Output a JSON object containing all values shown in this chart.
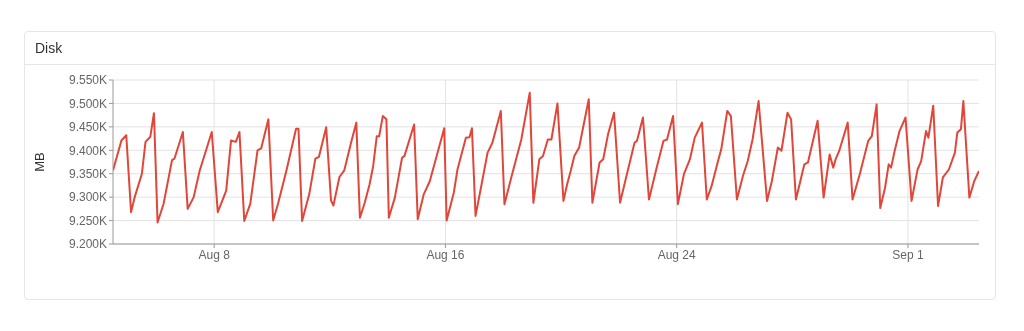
{
  "chart_data": {
    "type": "line",
    "title": "Disk",
    "ylabel": "MB",
    "color": "#e0473a",
    "grid": true,
    "legend": false,
    "marker": "none",
    "line_style": "solid",
    "xlim": [
      "--08-04T12:00",
      "--09-03T11:00"
    ],
    "xticks": [
      {
        "value": "--08-08",
        "label": "Aug 8"
      },
      {
        "value": "--08-16",
        "label": "Aug 16"
      },
      {
        "value": "--08-24",
        "label": "Aug 24"
      },
      {
        "value": "--09-01",
        "label": "Sep 1"
      }
    ],
    "ylim": [
      9200,
      9550
    ],
    "yticks": [
      {
        "value": 9200,
        "label": "9.200K"
      },
      {
        "value": 9250,
        "label": "9.250K"
      },
      {
        "value": 9300,
        "label": "9.300K"
      },
      {
        "value": 9350,
        "label": "9.350K"
      },
      {
        "value": 9400,
        "label": "9.400K"
      },
      {
        "value": 9450,
        "label": "9.450K"
      },
      {
        "value": 9500,
        "label": "9.500K"
      },
      {
        "value": 9550,
        "label": "9.550K"
      }
    ],
    "x": [
      "--08-04T12:00",
      "--08-04T19:00",
      "--08-04T23:00",
      "--08-05T03:00",
      "--08-05T06:00",
      "--08-05T12:00",
      "--08-05T15:00",
      "--08-05T19:00",
      "--08-05T22:00",
      "--08-06T01:00",
      "--08-06T06:00",
      "--08-06T13:00",
      "--08-06T15:00",
      "--08-06T22:00",
      "--08-07T02:00",
      "--08-07T07:00",
      "--08-07T12:00",
      "--08-07T22:00",
      "--08-08T03:00",
      "--08-08T10:00",
      "--08-08T14:00",
      "--08-08T18:00",
      "--08-08T21:00",
      "--08-09T01:00",
      "--08-09T06:00",
      "--08-09T12:00",
      "--08-09T15:00",
      "--08-09T21:00",
      "--08-10T01:00",
      "--08-10T05:00",
      "--08-10T12:00",
      "--08-10T20:00",
      "--08-10T22:00",
      "--08-11T01:00",
      "--08-11T07:00",
      "--08-11T12:00",
      "--08-11T15:00",
      "--08-11T21:00",
      "--08-12T01:00",
      "--08-12T03:00",
      "--08-12T08:00",
      "--08-12T12:00",
      "--08-12T18:00",
      "--08-12T22:00",
      "--08-13T01:00",
      "--08-13T05:00",
      "--08-13T09:00",
      "--08-13T12:00",
      "--08-13T15:00",
      "--08-13T17:00",
      "--08-13T20:00",
      "--08-13T23:00",
      "--08-14T01:00",
      "--08-14T06:00",
      "--08-14T12:00",
      "--08-14T14:00",
      "--08-14T22:00",
      "--08-15T01:00",
      "--08-15T06:00",
      "--08-15T11:00",
      "--08-15T23:00",
      "--08-16T01:00",
      "--08-16T07:00",
      "--08-16T10:00",
      "--08-16T17:00",
      "--08-16T20:00",
      "--08-16T22:00",
      "--08-17T01:00",
      "--08-17T06:00",
      "--08-17T11:00",
      "--08-17T15:00",
      "--08-17T22:00",
      "--08-18T01:00",
      "--08-18T07:00",
      "--08-18T15:00",
      "--08-18T22:00",
      "--08-19T01:00",
      "--08-19T06:00",
      "--08-19T09:00",
      "--08-19T13:00",
      "--08-19T16:00",
      "--08-19T21:00",
      "--08-20T02:00",
      "--08-20T05:00",
      "--08-20T08:00",
      "--08-20T11:00",
      "--08-20T15:00",
      "--08-20T23:00",
      "--08-21T02:00",
      "--08-21T08:00",
      "--08-21T11:00",
      "--08-21T15:00",
      "--08-21T20:00",
      "--08-22T01:00",
      "--08-22T06:00",
      "--08-22T13:00",
      "--08-22T15:00",
      "--08-22T20:00",
      "--08-23T01:00",
      "--08-23T07:00",
      "--08-23T13:00",
      "--08-23T16:00",
      "--08-23T21:00",
      "--08-24T01:00",
      "--08-24T06:00",
      "--08-24T11:00",
      "--08-24T15:00",
      "--08-24T21:00",
      "--08-25T01:00",
      "--08-25T05:00",
      "--08-25T10:00",
      "--08-25T13:00",
      "--08-25T18:00",
      "--08-25T21:00",
      "--08-26T02:00",
      "--08-26T07:00",
      "--08-26T11:00",
      "--08-26T15:00",
      "--08-26T20:00",
      "--08-27T03:00",
      "--08-27T07:00",
      "--08-27T12:00",
      "--08-27T15:00",
      "--08-27T20:00",
      "--08-27T23:00",
      "--08-28T03:00",
      "--08-28T06:00",
      "--08-28T10:00",
      "--08-28T13:00",
      "--08-28T21:00",
      "--08-29T02:00",
      "--08-29T07:00",
      "--08-29T10:00",
      "--08-29T12:00",
      "--08-29T15:00",
      "--08-29T22:00",
      "--08-30T02:00",
      "--08-30T08:00",
      "--08-30T15:00",
      "--08-30T18:00",
      "--08-30T22:00",
      "--08-31T01:00",
      "--08-31T05:00",
      "--08-31T08:00",
      "--08-31T10:00",
      "--08-31T13:00",
      "--08-31T17:00",
      "--08-31T22:00",
      "--09-01T03:00",
      "--09-01T08:00",
      "--09-01T11:00",
      "--09-01T15:00",
      "--09-01T17:00",
      "--09-01T21:00",
      "--09-02T01:00",
      "--09-02T05:00",
      "--09-02T10:00",
      "--09-02T15:00",
      "--09-02T17:00",
      "--09-02T20:00",
      "--09-02T22:00",
      "--09-03T03:00",
      "--09-03T07:00",
      "--09-03T11:00"
    ],
    "values": [
      9357,
      9421,
      9432,
      9268,
      9300,
      9350,
      9418,
      9429,
      9479,
      9246,
      9286,
      9379,
      9382,
      9439,
      9275,
      9300,
      9357,
      9439,
      9268,
      9314,
      9421,
      9418,
      9439,
      9249,
      9286,
      9400,
      9404,
      9466,
      9250,
      9286,
      9357,
      9446,
      9446,
      9249,
      9307,
      9382,
      9386,
      9449,
      9293,
      9282,
      9343,
      9357,
      9420,
      9459,
      9256,
      9288,
      9327,
      9366,
      9430,
      9430,
      9473,
      9466,
      9256,
      9299,
      9384,
      9388,
      9455,
      9253,
      9306,
      9334,
      9447,
      9250,
      9310,
      9359,
      9427,
      9428,
      9447,
      9260,
      9327,
      9395,
      9416,
      9484,
      9285,
      9345,
      9423,
      9523,
      9288,
      9381,
      9388,
      9423,
      9423,
      9500,
      9292,
      9327,
      9356,
      9388,
      9406,
      9509,
      9288,
      9374,
      9381,
      9434,
      9480,
      9288,
      9342,
      9416,
      9420,
      9470,
      9295,
      9359,
      9420,
      9423,
      9473,
      9285,
      9349,
      9381,
      9427,
      9459,
      9295,
      9324,
      9374,
      9402,
      9484,
      9473,
      9295,
      9345,
      9377,
      9423,
      9505,
      9292,
      9334,
      9406,
      9399,
      9480,
      9466,
      9295,
      9327,
      9370,
      9374,
      9463,
      9299,
      9391,
      9363,
      9381,
      9399,
      9459,
      9295,
      9349,
      9420,
      9430,
      9498,
      9277,
      9320,
      9370,
      9363,
      9399,
      9441,
      9470,
      9292,
      9359,
      9377,
      9441,
      9427,
      9495,
      9281,
      9342,
      9359,
      9395,
      9438,
      9445,
      9505,
      9299,
      9334,
      9356
    ]
  }
}
